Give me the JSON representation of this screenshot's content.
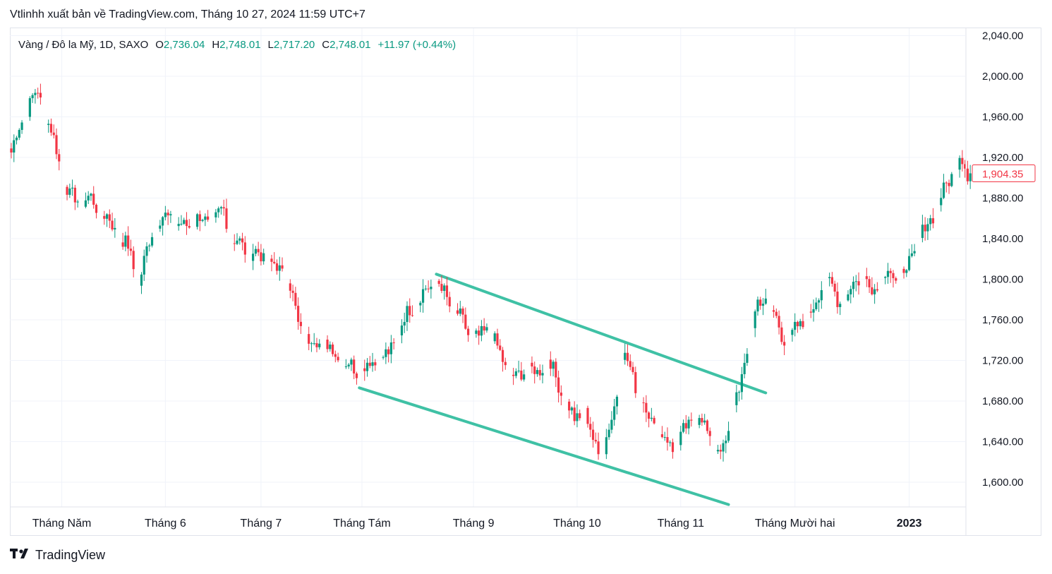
{
  "header": {
    "title": "Vtlinhh xuất bản về TradingView.com, Tháng 10 27, 2024 11:59 UTC+7"
  },
  "legend": {
    "symbol": "Vàng / Đô la Mỹ, 1D, SAXO",
    "open_label": "O",
    "open": "2,736.04",
    "high_label": "H",
    "high": "2,748.01",
    "low_label": "L",
    "low": "2,717.20",
    "close_label": "C",
    "close": "2,748.01",
    "change": "+11.97 (+0.44%)"
  },
  "footer": {
    "brand": "TradingView",
    "logo_icon": "tradingview-logo-icon"
  },
  "chart_data": {
    "type": "candlestick",
    "y_axis": {
      "ticks": [
        2040,
        2000,
        1960,
        1920,
        1880,
        1840,
        1800,
        1760,
        1720,
        1680,
        1640,
        1600
      ],
      "tick_labels": [
        "2,040.00",
        "2,000.00",
        "1,960.00",
        "1,920.00",
        "1,880.00",
        "1,840.00",
        "1,800.00",
        "1,760.00",
        "1,720.00",
        "1,680.00",
        "1,640.00",
        "1,600.00"
      ],
      "range": [
        1572,
        2050
      ]
    },
    "x_axis": {
      "labels": [
        "Tháng Năm",
        "Tháng 6",
        "Tháng 7",
        "Tháng Tám",
        "Tháng 9",
        "Tháng 10",
        "Tháng 11",
        "Tháng Mười hai",
        "2023"
      ],
      "bold_labels": [
        "2023"
      ],
      "label_positions": [
        19,
        58,
        94,
        132,
        174,
        213,
        252,
        295,
        338
      ]
    },
    "last_price": {
      "label": "1,904.35",
      "value": 1904.35,
      "color": "#f23645"
    },
    "colors": {
      "up": "#089981",
      "down": "#f23645",
      "trendline": "#3fc1a5",
      "grid": "#f0f3fa"
    },
    "trendlines": [
      {
        "name": "upper-channel-line",
        "from": {
          "index": 160,
          "value": 1805
        },
        "to": {
          "index": 284,
          "value": 1688
        }
      },
      {
        "name": "lower-channel-line",
        "from": {
          "index": 131,
          "value": 1693
        },
        "to": {
          "index": 270,
          "value": 1578
        }
      }
    ],
    "anchors": [
      [
        0,
        1925
      ],
      [
        5,
        1965
      ],
      [
        10,
        1985
      ],
      [
        15,
        1945
      ],
      [
        22,
        1880
      ],
      [
        30,
        1878
      ],
      [
        36,
        1860
      ],
      [
        44,
        1830
      ],
      [
        48,
        1795
      ],
      [
        54,
        1858
      ],
      [
        60,
        1860
      ],
      [
        65,
        1850
      ],
      [
        70,
        1860
      ],
      [
        75,
        1855
      ],
      [
        80,
        1868
      ],
      [
        83,
        1840
      ],
      [
        88,
        1830
      ],
      [
        96,
        1820
      ],
      [
        100,
        1810
      ],
      [
        104,
        1805
      ],
      [
        108,
        1755
      ],
      [
        112,
        1740
      ],
      [
        118,
        1738
      ],
      [
        124,
        1720
      ],
      [
        130,
        1710
      ],
      [
        136,
        1718
      ],
      [
        142,
        1725
      ],
      [
        146,
        1750
      ],
      [
        150,
        1770
      ],
      [
        155,
        1785
      ],
      [
        158,
        1795
      ],
      [
        160,
        1800
      ],
      [
        164,
        1780
      ],
      [
        168,
        1765
      ],
      [
        172,
        1748
      ],
      [
        176,
        1740
      ],
      [
        180,
        1755
      ],
      [
        183,
        1730
      ],
      [
        186,
        1715
      ],
      [
        190,
        1700
      ],
      [
        194,
        1715
      ],
      [
        198,
        1705
      ],
      [
        202,
        1725
      ],
      [
        205,
        1700
      ],
      [
        208,
        1685
      ],
      [
        212,
        1660
      ],
      [
        216,
        1670
      ],
      [
        219,
        1640
      ],
      [
        222,
        1625
      ],
      [
        226,
        1660
      ],
      [
        228,
        1690
      ],
      [
        230,
        1728
      ],
      [
        233,
        1710
      ],
      [
        236,
        1690
      ],
      [
        240,
        1665
      ],
      [
        244,
        1648
      ],
      [
        247,
        1640
      ],
      [
        250,
        1630
      ],
      [
        253,
        1648
      ],
      [
        256,
        1660
      ],
      [
        259,
        1665
      ],
      [
        262,
        1650
      ],
      [
        264,
        1635
      ],
      [
        266,
        1632
      ],
      [
        268,
        1630
      ],
      [
        270,
        1650
      ],
      [
        272,
        1680
      ],
      [
        274,
        1690
      ],
      [
        276,
        1712
      ],
      [
        278,
        1745
      ],
      [
        281,
        1775
      ],
      [
        284,
        1780
      ],
      [
        287,
        1765
      ],
      [
        290,
        1745
      ],
      [
        293,
        1740
      ],
      [
        296,
        1752
      ],
      [
        299,
        1760
      ],
      [
        302,
        1770
      ],
      [
        305,
        1795
      ],
      [
        308,
        1795
      ],
      [
        311,
        1780
      ],
      [
        314,
        1780
      ],
      [
        317,
        1795
      ],
      [
        320,
        1805
      ],
      [
        324,
        1790
      ],
      [
        327,
        1795
      ],
      [
        330,
        1810
      ],
      [
        333,
        1800
      ],
      [
        336,
        1808
      ],
      [
        339,
        1820
      ],
      [
        342,
        1840
      ],
      [
        345,
        1855
      ],
      [
        348,
        1870
      ],
      [
        351,
        1885
      ],
      [
        354,
        1905
      ],
      [
        357,
        1920
      ],
      [
        360,
        1904.35
      ]
    ]
  }
}
